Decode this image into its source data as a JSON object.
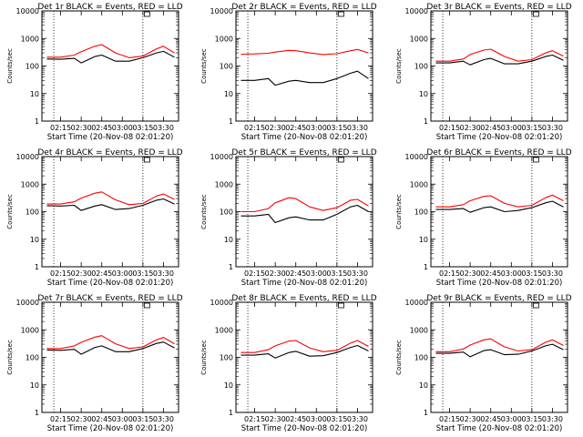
{
  "figure": {
    "shared_xlabel": "Start Time (20-Nov-08 02:01:20)",
    "shared_ylabel": "Counts/sec",
    "x_ticks": [
      "02:15",
      "02:30",
      "02:45",
      "03:00",
      "03:15",
      "03:30"
    ],
    "y_ticks": [
      "1",
      "10",
      "100",
      "1000",
      "10000"
    ],
    "colors": {
      "events": "#000000",
      "lld": "#ff0000",
      "axes": "#000000"
    }
  },
  "chart_data": [
    {
      "type": "line",
      "title": "Det 1r BLACK = Events, RED = LLD",
      "xlabel": "Start Time (20-Nov-08 02:01:20)",
      "ylabel": "Counts/sec",
      "y_scale": "log",
      "ylim": [
        1,
        10000
      ],
      "xlim": [
        "02:01:20",
        "03:41"
      ],
      "grid": false,
      "x": [
        "02:05",
        "02:15",
        "02:25",
        "02:30",
        "02:40",
        "02:45",
        "02:55",
        "03:05",
        "03:15",
        "03:25",
        "03:30",
        "03:38"
      ],
      "series": [
        {
          "name": "BLACK = Events",
          "color": "#000000",
          "values": [
            180,
            175,
            190,
            130,
            220,
            250,
            150,
            150,
            200,
            300,
            340,
            210
          ]
        },
        {
          "name": "RED = LLD",
          "color": "#ff0000",
          "values": [
            210,
            210,
            250,
            330,
            520,
            600,
            300,
            200,
            230,
            420,
            520,
            300
          ]
        }
      ]
    },
    {
      "type": "line",
      "title": "Det 2r BLACK = Events, RED = LLD",
      "xlabel": "Start Time (20-Nov-08 02:01:20)",
      "ylabel": "Counts/sec",
      "y_scale": "log",
      "ylim": [
        1,
        10000
      ],
      "xlim": [
        "02:01:20",
        "03:41"
      ],
      "grid": false,
      "x": [
        "02:05",
        "02:15",
        "02:25",
        "02:30",
        "02:40",
        "02:45",
        "02:55",
        "03:05",
        "03:15",
        "03:25",
        "03:30",
        "03:38"
      ],
      "series": [
        {
          "name": "BLACK = Events",
          "color": "#000000",
          "values": [
            30,
            30,
            35,
            20,
            28,
            30,
            25,
            25,
            35,
            55,
            65,
            35
          ]
        },
        {
          "name": "RED = LLD",
          "color": "#ff0000",
          "values": [
            270,
            275,
            290,
            320,
            370,
            360,
            300,
            260,
            280,
            360,
            400,
            300
          ]
        }
      ]
    },
    {
      "type": "line",
      "title": "Det 3r BLACK = Events, RED = LLD",
      "xlabel": "Start Time (20-Nov-08 02:01:20)",
      "ylabel": "Counts/sec",
      "y_scale": "log",
      "ylim": [
        1,
        10000
      ],
      "xlim": [
        "02:01:20",
        "03:41"
      ],
      "grid": false,
      "x": [
        "02:05",
        "02:15",
        "02:25",
        "02:30",
        "02:40",
        "02:45",
        "02:55",
        "03:05",
        "03:15",
        "03:25",
        "03:30",
        "03:38"
      ],
      "series": [
        {
          "name": "BLACK = Events",
          "color": "#000000",
          "values": [
            130,
            130,
            150,
            110,
            170,
            190,
            120,
            120,
            150,
            220,
            250,
            160
          ]
        },
        {
          "name": "RED = LLD",
          "color": "#ff0000",
          "values": [
            150,
            150,
            180,
            260,
            380,
            410,
            220,
            150,
            170,
            300,
            360,
            230
          ]
        }
      ]
    },
    {
      "type": "line",
      "title": "Det 4r BLACK = Events, RED = LLD",
      "xlabel": "Start Time (20-Nov-08 02:01:20)",
      "ylabel": "Counts/sec",
      "y_scale": "log",
      "ylim": [
        1,
        10000
      ],
      "xlim": [
        "02:01:20",
        "03:41"
      ],
      "grid": false,
      "x": [
        "02:05",
        "02:15",
        "02:25",
        "02:30",
        "02:40",
        "02:45",
        "02:55",
        "03:05",
        "03:15",
        "03:25",
        "03:30",
        "03:38"
      ],
      "series": [
        {
          "name": "BLACK = Events",
          "color": "#000000",
          "values": [
            165,
            160,
            170,
            110,
            160,
            180,
            120,
            130,
            170,
            260,
            290,
            190
          ]
        },
        {
          "name": "RED = LLD",
          "color": "#ff0000",
          "values": [
            190,
            190,
            230,
            310,
            470,
            520,
            270,
            180,
            200,
            370,
            440,
            280
          ]
        }
      ]
    },
    {
      "type": "line",
      "title": "Det 5r BLACK = Events, RED = LLD",
      "xlabel": "Start Time (20-Nov-08 02:01:20)",
      "ylabel": "Counts/sec",
      "y_scale": "log",
      "ylim": [
        1,
        10000
      ],
      "xlim": [
        "02:01:20",
        "03:41"
      ],
      "grid": false,
      "x": [
        "02:05",
        "02:15",
        "02:25",
        "02:30",
        "02:40",
        "02:45",
        "02:55",
        "03:05",
        "03:15",
        "03:25",
        "03:30",
        "03:38"
      ],
      "series": [
        {
          "name": "BLACK = Events",
          "color": "#000000",
          "values": [
            70,
            70,
            80,
            40,
            60,
            65,
            50,
            50,
            80,
            150,
            170,
            100
          ]
        },
        {
          "name": "RED = LLD",
          "color": "#ff0000",
          "values": [
            100,
            100,
            130,
            210,
            320,
            300,
            150,
            110,
            140,
            260,
            280,
            160
          ]
        }
      ]
    },
    {
      "type": "line",
      "title": "Det 6r BLACK = Events, RED = LLD",
      "xlabel": "Start Time (20-Nov-08 02:01:20)",
      "ylabel": "Counts/sec",
      "y_scale": "log",
      "ylim": [
        1,
        10000
      ],
      "xlim": [
        "02:01:20",
        "03:41"
      ],
      "grid": false,
      "x": [
        "02:05",
        "02:15",
        "02:25",
        "02:30",
        "02:40",
        "02:45",
        "02:55",
        "03:05",
        "03:15",
        "03:25",
        "03:30",
        "03:38"
      ],
      "series": [
        {
          "name": "BLACK = Events",
          "color": "#000000",
          "values": [
            120,
            120,
            130,
            95,
            140,
            150,
            100,
            110,
            140,
            210,
            240,
            150
          ]
        },
        {
          "name": "RED = LLD",
          "color": "#ff0000",
          "values": [
            150,
            150,
            180,
            250,
            360,
            380,
            200,
            150,
            170,
            320,
            400,
            250
          ]
        }
      ]
    },
    {
      "type": "line",
      "title": "Det 7r BLACK = Events, RED = LLD",
      "xlabel": "Start Time (20-Nov-08 02:01:20)",
      "ylabel": "Counts/sec",
      "y_scale": "log",
      "ylim": [
        1,
        10000
      ],
      "xlim": [
        "02:01:20",
        "03:41"
      ],
      "grid": false,
      "x": [
        "02:05",
        "02:15",
        "02:25",
        "02:30",
        "02:40",
        "02:45",
        "02:55",
        "03:05",
        "03:15",
        "03:25",
        "03:30",
        "03:38"
      ],
      "series": [
        {
          "name": "BLACK = Events",
          "color": "#000000",
          "values": [
            185,
            180,
            195,
            130,
            230,
            260,
            160,
            160,
            210,
            320,
            360,
            220
          ]
        },
        {
          "name": "RED = LLD",
          "color": "#ff0000",
          "values": [
            210,
            210,
            260,
            350,
            540,
            610,
            310,
            210,
            240,
            430,
            530,
            310
          ]
        }
      ]
    },
    {
      "type": "line",
      "title": "Det 8r BLACK = Events, RED = LLD",
      "xlabel": "Start Time (20-Nov-08 02:01:20)",
      "ylabel": "Counts/sec",
      "y_scale": "log",
      "ylim": [
        1,
        10000
      ],
      "xlim": [
        "02:01:20",
        "03:41"
      ],
      "grid": false,
      "x": [
        "02:05",
        "02:15",
        "02:25",
        "02:30",
        "02:40",
        "02:45",
        "02:55",
        "03:05",
        "03:15",
        "03:25",
        "03:30",
        "03:38"
      ],
      "series": [
        {
          "name": "BLACK = Events",
          "color": "#000000",
          "values": [
            120,
            120,
            135,
            95,
            150,
            165,
            110,
            115,
            150,
            230,
            270,
            170
          ]
        },
        {
          "name": "RED = LLD",
          "color": "#ff0000",
          "values": [
            150,
            150,
            190,
            260,
            390,
            410,
            220,
            160,
            180,
            330,
            410,
            250
          ]
        }
      ]
    },
    {
      "type": "line",
      "title": "Det 9r BLACK = Events, RED = LLD",
      "xlabel": "Start Time (20-Nov-08 02:01:20)",
      "ylabel": "Counts/sec",
      "y_scale": "log",
      "ylim": [
        1,
        10000
      ],
      "xlim": [
        "02:01:20",
        "03:41"
      ],
      "grid": false,
      "x": [
        "02:05",
        "02:15",
        "02:25",
        "02:30",
        "02:40",
        "02:45",
        "02:55",
        "03:05",
        "03:15",
        "03:25",
        "03:30",
        "03:38"
      ],
      "series": [
        {
          "name": "BLACK = Events",
          "color": "#000000",
          "values": [
            140,
            140,
            155,
            105,
            175,
            190,
            125,
            130,
            170,
            260,
            300,
            190
          ]
        },
        {
          "name": "RED = LLD",
          "color": "#ff0000",
          "values": [
            160,
            160,
            200,
            280,
            430,
            470,
            240,
            170,
            190,
            350,
            430,
            270
          ]
        }
      ]
    }
  ]
}
